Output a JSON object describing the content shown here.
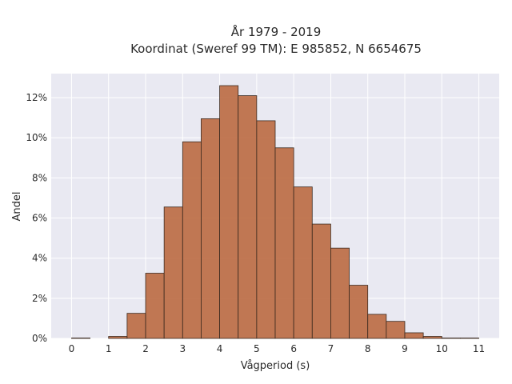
{
  "chart_data": {
    "type": "bar",
    "title_line1": "År 1979 - 2019",
    "title_line2": "Koordinat (Sweref 99 TM): E 985852, N 6654675",
    "xlabel": "Vågperiod (s)",
    "ylabel": "Andel",
    "xlim": [
      -0.55,
      11.55
    ],
    "ylim": [
      0,
      13.2
    ],
    "x_ticks": [
      0,
      1,
      2,
      3,
      4,
      5,
      6,
      7,
      8,
      9,
      10,
      11
    ],
    "x_tick_labels": [
      "0",
      "1",
      "2",
      "3",
      "4",
      "5",
      "6",
      "7",
      "8",
      "9",
      "10",
      "11"
    ],
    "y_ticks": [
      0,
      2,
      4,
      6,
      8,
      10,
      12
    ],
    "y_tick_labels": [
      "0%",
      "2%",
      "4%",
      "6%",
      "8%",
      "10%",
      "12%"
    ],
    "bin_width": 0.5,
    "bins": [
      {
        "x0": 0.0,
        "value": 0.02
      },
      {
        "x0": 0.5,
        "value": 0.0
      },
      {
        "x0": 1.0,
        "value": 0.1
      },
      {
        "x0": 1.5,
        "value": 1.25
      },
      {
        "x0": 2.0,
        "value": 3.25
      },
      {
        "x0": 2.5,
        "value": 6.55
      },
      {
        "x0": 3.0,
        "value": 9.8
      },
      {
        "x0": 3.5,
        "value": 10.95
      },
      {
        "x0": 4.0,
        "value": 12.6
      },
      {
        "x0": 4.5,
        "value": 12.1
      },
      {
        "x0": 5.0,
        "value": 10.85
      },
      {
        "x0": 5.5,
        "value": 9.5
      },
      {
        "x0": 6.0,
        "value": 7.55
      },
      {
        "x0": 6.5,
        "value": 5.7
      },
      {
        "x0": 7.0,
        "value": 4.5
      },
      {
        "x0": 7.5,
        "value": 2.65
      },
      {
        "x0": 8.0,
        "value": 1.2
      },
      {
        "x0": 8.5,
        "value": 0.85
      },
      {
        "x0": 9.0,
        "value": 0.28
      },
      {
        "x0": 9.5,
        "value": 0.1
      },
      {
        "x0": 10.0,
        "value": 0.02
      },
      {
        "x0": 10.5,
        "value": 0.02
      }
    ],
    "grid": true,
    "plot_background": "#e9e9f2",
    "bar_color": "#b9673c",
    "bar_edge_color": "#3b2a20"
  }
}
